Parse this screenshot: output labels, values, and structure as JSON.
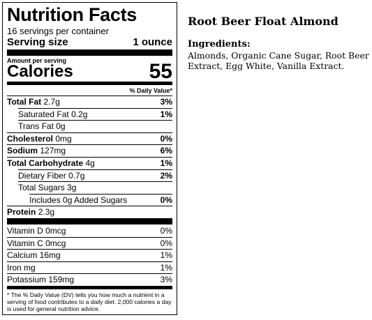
{
  "label": {
    "title": "Nutrition Facts",
    "servings_per_container": "16 servings per container",
    "serving_size_label": "Serving size",
    "serving_size_value": "1 ounce",
    "amount_per_serving": "Amount per serving",
    "calories_label": "Calories",
    "calories_value": "55",
    "dv_header": "% Daily Value*",
    "rows": [
      {
        "name": "Total Fat",
        "amount": "2.7g",
        "dv": "3%"
      },
      {
        "name": "Saturated Fat",
        "amount": "0.2g",
        "dv": "1%"
      },
      {
        "name": "Trans Fat",
        "amount": "0g",
        "dv": ""
      },
      {
        "name": "Cholesterol",
        "amount": "0mg",
        "dv": "0%"
      },
      {
        "name": "Sodium",
        "amount": "127mg",
        "dv": "6%"
      },
      {
        "name": "Total Carbohydrate",
        "amount": "4g",
        "dv": "1%"
      },
      {
        "name": "Dietary Fiber",
        "amount": "0.7g",
        "dv": "2%"
      },
      {
        "name": "Total Sugars",
        "amount": "3g",
        "dv": ""
      },
      {
        "name": "Includes 0g Added Sugars",
        "amount": "",
        "dv": "0%"
      },
      {
        "name": "Protein",
        "amount": "2.3g",
        "dv": ""
      }
    ],
    "vitamins": [
      {
        "name": "Vitamin D 0mcg",
        "dv": "0%"
      },
      {
        "name": "Vitamin C 0mcg",
        "dv": "0%"
      },
      {
        "name": "Calcium 16mg",
        "dv": "1%"
      },
      {
        "name": "Iron mg",
        "dv": "1%"
      },
      {
        "name": "Potassium 159mg",
        "dv": "3%"
      }
    ],
    "footnote": "* The % Daily Value (DV) tells you how much a nutrient in a serving of food contributes to a daily diet. 2,000 calories a day is used for general nutrition advice."
  },
  "product": {
    "name": "Root Beer Float Almond",
    "ingredients_heading": "Ingredients:",
    "ingredients": "Almonds, Organic Cane Sugar, Root Beer Extract, Egg White, Vanilla Extract."
  }
}
